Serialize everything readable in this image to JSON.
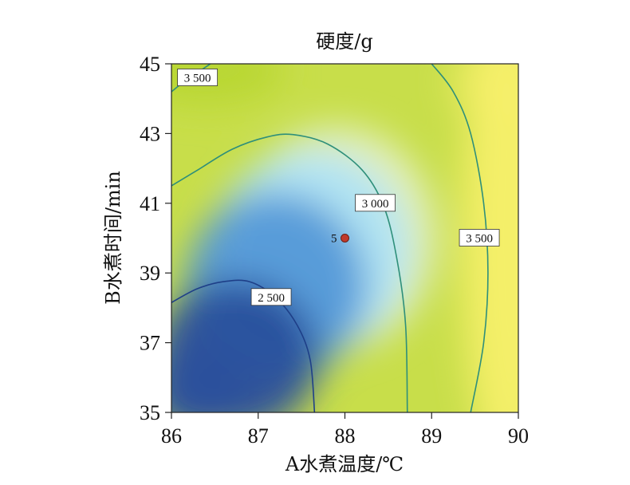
{
  "chart_data": {
    "type": "heatmap",
    "subtype": "contour",
    "title": "硬度/g",
    "xlabel": "A水煮温度/℃",
    "ylabel": "B水煮时间/min",
    "xlim": [
      86,
      90
    ],
    "ylim": [
      35,
      45
    ],
    "x_ticks": [
      "86",
      "87",
      "88",
      "89",
      "90"
    ],
    "y_ticks": [
      "35",
      "37",
      "39",
      "41",
      "43",
      "45"
    ],
    "colormap": [
      "#2a4f9c",
      "#4f95d6",
      "#aee3f6",
      "#e6f2d2",
      "#c4dc45",
      "#b8d630",
      "#f7f06a"
    ],
    "contour_color": "#2e8f7a",
    "contours": [
      {
        "level": 2500,
        "label": "2 500",
        "color": "#1e3f88",
        "points": [
          [
            86.0,
            38.15
          ],
          [
            86.3,
            38.55
          ],
          [
            86.6,
            38.75
          ],
          [
            86.9,
            38.75
          ],
          [
            87.2,
            38.3
          ],
          [
            87.45,
            37.5
          ],
          [
            87.6,
            36.5
          ],
          [
            87.65,
            35.0
          ]
        ]
      },
      {
        "level": 3000,
        "label": "3 000",
        "color": "#2e8f7a",
        "points": [
          [
            86.0,
            41.5
          ],
          [
            86.3,
            41.95
          ],
          [
            86.7,
            42.55
          ],
          [
            87.1,
            42.9
          ],
          [
            87.4,
            42.97
          ],
          [
            87.8,
            42.7
          ],
          [
            88.2,
            41.95
          ],
          [
            88.45,
            40.9
          ],
          [
            88.6,
            39.4
          ],
          [
            88.7,
            37.5
          ],
          [
            88.72,
            35.0
          ]
        ]
      },
      {
        "level": 3500,
        "label": "3 500",
        "color": "#2e8f7a",
        "points": [
          [
            86.0,
            44.2
          ],
          [
            86.15,
            44.5
          ],
          [
            86.3,
            44.75
          ],
          [
            86.45,
            45.0
          ]
        ]
      },
      {
        "level": 3500,
        "label": "3 500",
        "color": "#2e8f7a",
        "points": [
          [
            89.0,
            45.0
          ],
          [
            89.25,
            44.2
          ],
          [
            89.45,
            43.0
          ],
          [
            89.6,
            41.0
          ],
          [
            89.65,
            39.0
          ],
          [
            89.6,
            37.0
          ],
          [
            89.45,
            35.0
          ]
        ]
      }
    ],
    "contour_labels": [
      {
        "text": "3 500",
        "x": 86.3,
        "y": 44.6
      },
      {
        "text": "3 000",
        "x": 88.35,
        "y": 41.0
      },
      {
        "text": "3 500",
        "x": 89.55,
        "y": 40.0
      },
      {
        "text": "2 500",
        "x": 87.15,
        "y": 38.3
      }
    ],
    "points": [
      {
        "label": "5",
        "x": 88.0,
        "y": 40.0,
        "color": "#c0392b"
      }
    ],
    "grid": false,
    "legend": "none"
  }
}
